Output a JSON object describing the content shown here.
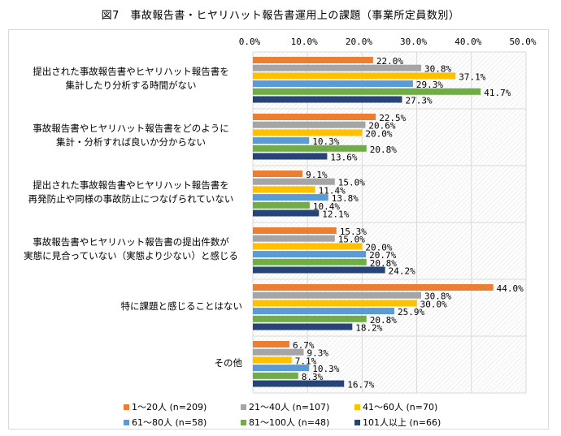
{
  "chart_data": {
    "type": "bar",
    "orientation": "horizontal",
    "title": "図7　事故報告書・ヒヤリハット報告書運用上の課題（事業所定員数別）",
    "xlabel": "",
    "ylabel": "",
    "xlim": [
      0,
      50
    ],
    "x_ticks": [
      "0.0%",
      "10.0%",
      "20.0%",
      "30.0%",
      "40.0%",
      "50.0%"
    ],
    "x_tick_values": [
      0,
      10,
      20,
      30,
      40,
      50
    ],
    "grid": true,
    "legend_position": "bottom",
    "categories": [
      {
        "line1": "提出された事故報告書やヒヤリハット報告書を",
        "line2": "集計したり分析する時間がない"
      },
      {
        "line1": "事故報告書やヒヤリハット報告書をどのように",
        "line2": "集計・分析すれば良いか分からない"
      },
      {
        "line1": "提出された事故報告書やヒヤリハット報告書を",
        "line2": "再発防止や同様の事故防止につなげられていない"
      },
      {
        "line1": "事故報告書やヒヤリハット報告書の提出件数が",
        "line2": "実態に見合っていない（実態より少ない）と感じる"
      },
      {
        "line1": "特に課題と感じることはない",
        "line2": ""
      },
      {
        "line1": "その他",
        "line2": ""
      }
    ],
    "series": [
      {
        "name": "1～20人 (n=209)",
        "color": "#ED7D31",
        "values": [
          22.0,
          22.5,
          9.1,
          15.3,
          44.0,
          6.7
        ],
        "labels": [
          "22.0%",
          "22.5%",
          "9.1%",
          "15.3%",
          "44.0%",
          "6.7%"
        ]
      },
      {
        "name": "21～40人 (n=107)",
        "color": "#A5A5A5",
        "values": [
          30.8,
          20.6,
          15.0,
          15.0,
          30.8,
          9.3
        ],
        "labels": [
          "30.8%",
          "20.6%",
          "15.0%",
          "15.0%",
          "30.8%",
          "9.3%"
        ]
      },
      {
        "name": "41～60人 (n=70)",
        "color": "#FFC000",
        "values": [
          37.1,
          20.0,
          11.4,
          20.0,
          30.0,
          7.1
        ],
        "labels": [
          "37.1%",
          "20.0%",
          "11.4%",
          "20.0%",
          "30.0%",
          "7.1%"
        ]
      },
      {
        "name": "61～80人 (n=58)",
        "color": "#5B9BD5",
        "values": [
          29.3,
          10.3,
          13.8,
          20.7,
          25.9,
          10.3
        ],
        "labels": [
          "29.3%",
          "10.3%",
          "13.8%",
          "20.7%",
          "25.9%",
          "10.3%"
        ]
      },
      {
        "name": "81～100人 (n=48)",
        "color": "#70AD47",
        "values": [
          41.7,
          20.8,
          10.4,
          20.8,
          20.8,
          8.3
        ],
        "labels": [
          "41.7%",
          "20.8%",
          "10.4%",
          "20.8%",
          "20.8%",
          "8.3%"
        ]
      },
      {
        "name": "101人以上 (n=66)",
        "color": "#264478",
        "values": [
          27.3,
          13.6,
          12.1,
          24.2,
          18.2,
          16.7
        ],
        "labels": [
          "27.3%",
          "13.6%",
          "12.1%",
          "24.2%",
          "18.2%",
          "16.7%"
        ]
      }
    ]
  }
}
